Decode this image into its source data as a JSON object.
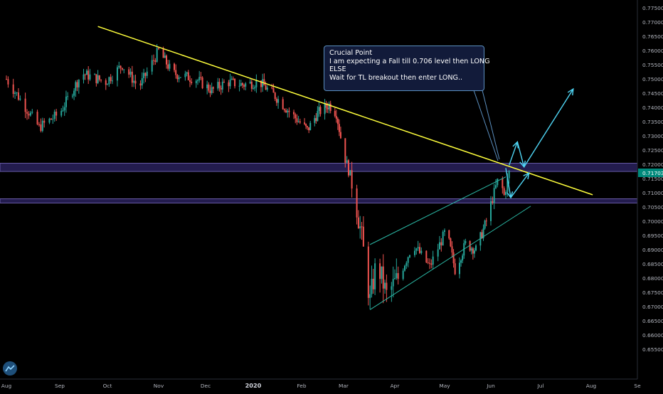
{
  "chart_data": {
    "type": "candlestick",
    "instrument_last_price": "0.71703",
    "y_axis": {
      "ylim": [
        0.6445,
        0.7778
      ],
      "ticks": [
        "0.77500",
        "0.77000",
        "0.76500",
        "0.76000",
        "0.75500",
        "0.75000",
        "0.74500",
        "0.74000",
        "0.73500",
        "0.73000",
        "0.72500",
        "0.72000",
        "0.71500",
        "0.71000",
        "0.70500",
        "0.70000",
        "0.69500",
        "0.69000",
        "0.68500",
        "0.68000",
        "0.67500",
        "0.67000",
        "0.66500",
        "0.66000",
        "0.65500"
      ]
    },
    "x_axis": {
      "ticks": [
        "Aug",
        "Sep",
        "Oct",
        "Nov",
        "Dec",
        "2020",
        "Feb",
        "Mar",
        "Apr",
        "May",
        "Jun",
        "Jul",
        "Aug",
        "Se"
      ]
    },
    "price_path": [
      [
        "2019-08-01",
        0.75
      ],
      [
        "2019-08-10",
        0.742
      ],
      [
        "2019-08-20",
        0.733
      ],
      [
        "2019-09-01",
        0.738
      ],
      [
        "2019-09-15",
        0.752
      ],
      [
        "2019-09-30",
        0.749
      ],
      [
        "2019-10-10",
        0.755
      ],
      [
        "2019-10-20",
        0.747
      ],
      [
        "2019-11-01",
        0.76
      ],
      [
        "2019-11-10",
        0.752
      ],
      [
        "2019-11-25",
        0.75
      ],
      [
        "2019-12-05",
        0.746
      ],
      [
        "2019-12-15",
        0.749
      ],
      [
        "2019-12-25",
        0.748
      ],
      [
        "2020-01-05",
        0.749
      ],
      [
        "2020-01-15",
        0.744
      ],
      [
        "2020-01-25",
        0.738
      ],
      [
        "2020-02-05",
        0.732
      ],
      [
        "2020-02-12",
        0.738
      ],
      [
        "2020-02-20",
        0.741
      ],
      [
        "2020-02-25",
        0.738
      ],
      [
        "2020-03-01",
        0.724
      ],
      [
        "2020-03-07",
        0.712
      ],
      [
        "2020-03-12",
        0.694
      ],
      [
        "2020-03-17",
        0.672
      ],
      [
        "2020-03-21",
        0.686
      ],
      [
        "2020-03-27",
        0.674
      ],
      [
        "2020-04-03",
        0.68
      ],
      [
        "2020-04-12",
        0.692
      ],
      [
        "2020-04-22",
        0.684
      ],
      [
        "2020-05-02",
        0.697
      ],
      [
        "2020-05-08",
        0.683
      ],
      [
        "2020-05-15",
        0.692
      ],
      [
        "2020-05-22",
        0.69
      ],
      [
        "2020-05-29",
        0.7
      ],
      [
        "2020-06-02",
        0.708
      ],
      [
        "2020-06-06",
        0.716
      ],
      [
        "2020-06-09",
        0.709
      ],
      [
        "2020-06-12",
        0.717
      ]
    ],
    "lines": {
      "descending_trendline": {
        "start": [
          "2019-09-25",
          0.7685
        ],
        "end": [
          "2020-08-02",
          0.7093
        ]
      },
      "channel_upper": {
        "start": [
          "2020-03-17",
          0.6918
        ],
        "end": [
          "2020-06-10",
          0.7156
        ]
      },
      "channel_lower": {
        "start": [
          "2020-03-17",
          0.6689
        ],
        "end": [
          "2020-06-25",
          0.7053
        ]
      }
    },
    "zones": [
      [
        0.7175,
        0.7204
      ],
      [
        0.7064,
        0.7079
      ]
    ],
    "projection_arrows": [
      [
        [
          "2020-06-10",
          0.7187
        ],
        [
          "2020-06-13",
          0.7083
        ]
      ],
      [
        [
          "2020-06-13",
          0.7083
        ],
        [
          "2020-06-24",
          0.717
        ]
      ],
      [
        [
          "2020-06-12",
          0.7197
        ],
        [
          "2020-06-17",
          0.7279
        ]
      ],
      [
        [
          "2020-06-17",
          0.7279
        ],
        [
          "2020-06-21",
          0.7191
        ]
      ],
      [
        [
          "2020-06-21",
          0.7191
        ],
        [
          "2020-07-21",
          0.7465
        ]
      ]
    ],
    "colors": {
      "up": "#26a69a",
      "down": "#ef5350",
      "trendline": "#ffff3c",
      "channel": "#2bb8a5",
      "arrow": "#4fd6f5",
      "zone_fill": "#231c4e",
      "zone_border": "#6659a3",
      "price_label": "#00897b"
    }
  },
  "annotation": {
    "line1": "Crucial Point",
    "line2": "I am expecting a Fall till 0.706 level then LONG",
    "line3": "ELSE",
    "line4": "Wait for TL breakout then enter LONG.."
  },
  "logo": {
    "icon": "tradingview-logo-icon"
  }
}
